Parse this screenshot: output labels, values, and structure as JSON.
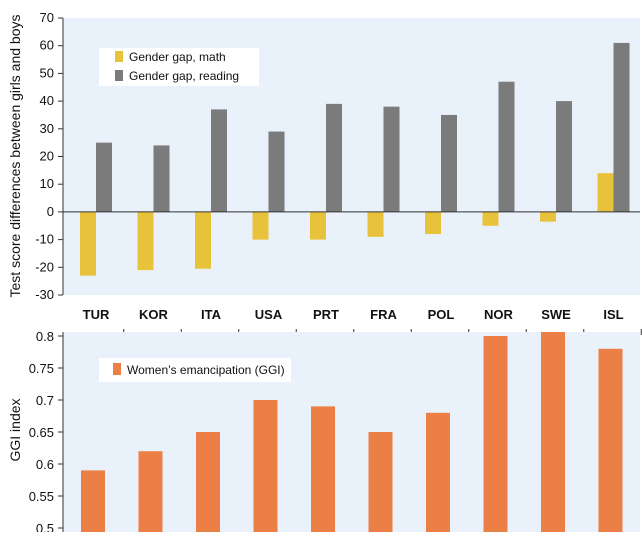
{
  "colors": {
    "math": "#e8c23a",
    "reading": "#7b7b7b",
    "ggi": "#ec7f46",
    "panel_bg": "#e9f2fa",
    "axis": "#333333"
  },
  "chart_data": [
    {
      "type": "bar",
      "ylabel": "Test score differences between girls and boys",
      "ylim": [
        -30,
        70
      ],
      "yticks": [
        -30,
        -20,
        -10,
        0,
        10,
        20,
        30,
        40,
        50,
        60,
        70
      ],
      "categories": [
        "TUR",
        "KOR",
        "ITA",
        "USA",
        "PRT",
        "FRA",
        "POL",
        "NOR",
        "SWE",
        "ISL"
      ],
      "legend_position": "top-left",
      "series": [
        {
          "name": "Gender gap, math",
          "color": "#e8c23a",
          "values": [
            -23,
            -21,
            -20.5,
            -10,
            -10,
            -9,
            -8,
            -5,
            -3.5,
            14
          ]
        },
        {
          "name": "Gender gap, reading",
          "color": "#7b7b7b",
          "values": [
            25,
            24,
            37,
            29,
            39,
            38,
            35,
            47,
            40,
            61
          ]
        }
      ]
    },
    {
      "type": "bar",
      "ylabel": "GGI index",
      "ylim": [
        0.5,
        0.8
      ],
      "yticks": [
        0.5,
        0.55,
        0.6,
        0.65,
        0.7,
        0.75,
        0.8
      ],
      "categories": [
        "TUR",
        "KOR",
        "ITA",
        "USA",
        "PRT",
        "FRA",
        "POL",
        "NOR",
        "SWE",
        "ISL"
      ],
      "legend_position": "top-left",
      "series": [
        {
          "name": "Women’s emancipation (GGI)",
          "color": "#ec7f46",
          "values": [
            0.59,
            0.62,
            0.65,
            0.7,
            0.69,
            0.65,
            0.68,
            0.8,
            0.81,
            0.78
          ]
        }
      ]
    }
  ]
}
